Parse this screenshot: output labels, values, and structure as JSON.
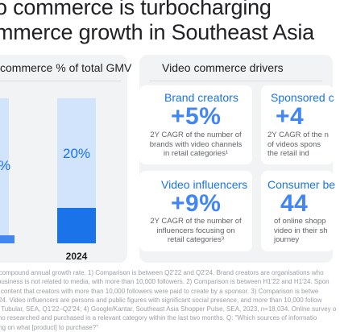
{
  "title": {
    "line1": "o commerce is turbocharging",
    "line2": "mmerce growth in Southeast Asia"
  },
  "left_panel": {
    "title": "commerce % of total GMV",
    "bar1_label": "%",
    "bar2_label": "20%",
    "bar2_year": "2024"
  },
  "right_panel": {
    "title": "Video commerce drivers",
    "tiles": [
      {
        "title": "Brand creators",
        "value": "+5%",
        "desc_lines": [
          "2Y CAGR of the number of",
          "brands with video channels",
          "in retail categories¹"
        ]
      },
      {
        "title": "Sponsored c",
        "value": "+4",
        "desc_lines": [
          "2Y CAGR of the n",
          "of videos spons",
          "the retail ind"
        ]
      },
      {
        "title": "Video influencers",
        "value": "+9%",
        "desc_lines": [
          "2Y CAGR of the number of",
          "influencers focusing on",
          "retail categories³"
        ]
      },
      {
        "title": "Consumer be",
        "value": "44",
        "desc_lines": [
          "of online shopp",
          "video in their sh",
          "journey"
        ]
      }
    ]
  },
  "footnotes": [
    "e compound annual growth rate. 1) Comparison is between Q2'22 and Q2'24. Brand creators are organisations who",
    "r business is not related to media, with more than 10,000 followers. 2) Comparison is between H1'22 and H1'24. Spon",
    "to content that creators with more than 10,000 followers were paid to create by a sponsor. 3) Comparison is betwe",
    "2'24. Video influencers are persons and public figures with significant social presence, and more than 10,000 follow",
    "1) Tubular, SEA, Q1'22–Q2'24; 4) Google/Kantar, Southeast Asia Shopper Pulse, SEA, 2023, n=18,034. Online survey o",
    "who researched and purchased in a relevant category within the last two months. Q: \"Which sources of informatio",
    "ding on what [product] to purchase?\""
  ],
  "colors": {
    "accent": "#1a73e8",
    "accent_light": "#4285f4",
    "bar_background": "#d2e3fc",
    "panel_background": "#f1f3f4"
  }
}
